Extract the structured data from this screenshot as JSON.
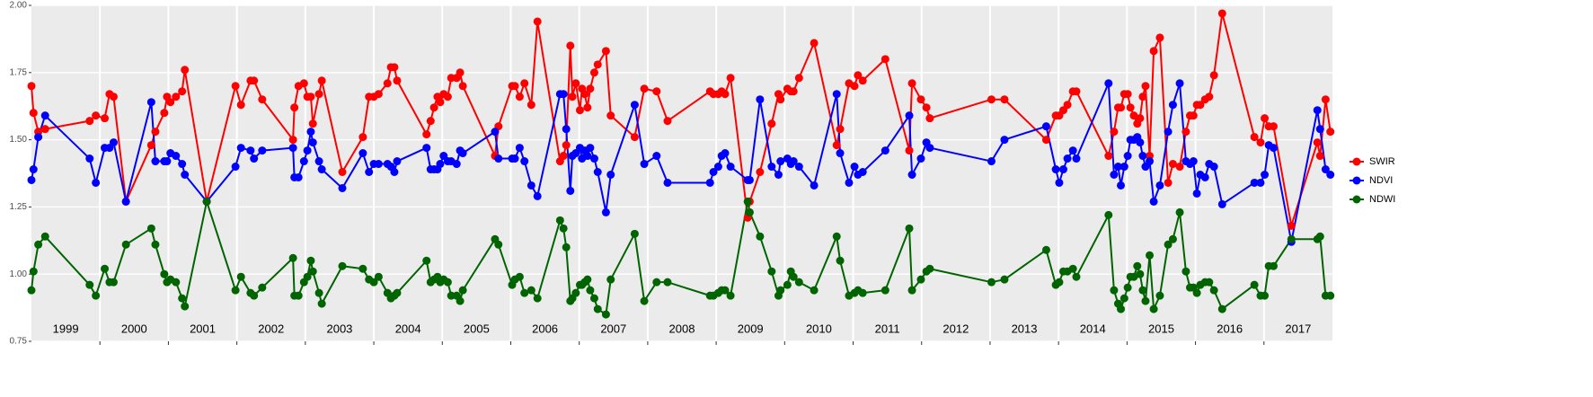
{
  "chart_data": {
    "type": "line",
    "xlim": [
      1999,
      2018
    ],
    "xticks": [
      2000,
      2001,
      2002,
      2003,
      2004,
      2005,
      2006,
      2007,
      2008,
      2009,
      2010,
      2011,
      2012,
      2013,
      2014,
      2015,
      2016,
      2017
    ],
    "year_labels": [
      "1999",
      "2000",
      "2001",
      "2002",
      "2003",
      "2004",
      "2005",
      "2006",
      "2007",
      "2008",
      "2009",
      "2010",
      "2011",
      "2012",
      "2013",
      "2014",
      "2015",
      "2016",
      "2017"
    ],
    "ylim": [
      0.75,
      2.0
    ],
    "yticks": [
      0.75,
      {
        "value": 1,
        "label": "1.00"
      },
      1.25,
      {
        "value": 1.5,
        "label": "1.50"
      },
      1.75,
      {
        "value": 2,
        "label": "2.00"
      }
    ],
    "grid": true,
    "legend": "right",
    "x": [
      1999.0,
      1999.03,
      1999.1,
      1999.2,
      1999.85,
      1999.94,
      2000.07,
      2000.14,
      2000.2,
      2000.38,
      2000.75,
      2000.81,
      2000.94,
      2000.98,
      2001.03,
      2001.11,
      2001.2,
      2001.24,
      2001.56,
      2001.98,
      2002.06,
      2002.2,
      2002.25,
      2002.37,
      2002.82,
      2002.84,
      2002.9,
      2002.98,
      2003.03,
      2003.08,
      2003.11,
      2003.2,
      2003.24,
      2003.54,
      2003.84,
      2003.93,
      2004.0,
      2004.07,
      2004.2,
      2004.25,
      2004.3,
      2004.34,
      2004.77,
      2004.83,
      2004.88,
      2004.93,
      2004.97,
      2005.02,
      2005.08,
      2005.13,
      2005.21,
      2005.26,
      2005.3,
      2005.77,
      2005.82,
      2006.02,
      2006.06,
      2006.13,
      2006.2,
      2006.3,
      2006.39,
      2006.72,
      2006.77,
      2006.81,
      2006.87,
      2006.9,
      2006.95,
      2007.01,
      2007.04,
      2007.08,
      2007.12,
      2007.16,
      2007.22,
      2007.27,
      2007.39,
      2007.46,
      2007.81,
      2007.95,
      2008.13,
      2008.29,
      2008.91,
      2008.96,
      2009.03,
      2009.08,
      2009.13,
      2009.21,
      2009.46,
      2009.49,
      2009.64,
      2009.81,
      2009.91,
      2009.94,
      2010.04,
      2010.09,
      2010.13,
      2010.21,
      2010.43,
      2010.76,
      2010.81,
      2010.94,
      2011.02,
      2011.07,
      2011.14,
      2011.47,
      2011.82,
      2011.86,
      2011.99,
      2012.07,
      2012.12,
      2013.02,
      2013.21,
      2013.82,
      2013.96,
      2014.01,
      2014.07,
      2014.13,
      2014.21,
      2014.26,
      2014.73,
      2014.81,
      2014.87,
      2014.91,
      2014.96,
      2015.01,
      2015.05,
      2015.1,
      2015.15,
      2015.19,
      2015.23,
      2015.27,
      2015.33,
      2015.39,
      2015.48,
      2015.6,
      2015.67,
      2015.77,
      2015.86,
      2015.92,
      2015.97,
      2016.02,
      2016.07,
      2016.14,
      2016.2,
      2016.27,
      2016.39,
      2016.86,
      2016.95,
      2017.01,
      2017.07,
      2017.14,
      2017.4,
      2017.78,
      2017.82,
      2017.9,
      2017.97
    ],
    "series": [
      {
        "name": "SWIR",
        "color": "#ff0000",
        "values": [
          1.7,
          1.6,
          1.53,
          1.54,
          1.57,
          1.59,
          1.58,
          1.67,
          1.66,
          1.27,
          1.48,
          1.53,
          1.6,
          1.66,
          1.64,
          1.66,
          1.68,
          1.76,
          1.27,
          1.7,
          1.63,
          1.72,
          1.72,
          1.65,
          1.5,
          1.62,
          1.7,
          1.71,
          1.66,
          1.66,
          1.56,
          1.67,
          1.72,
          1.38,
          1.51,
          1.66,
          1.66,
          1.67,
          1.71,
          1.77,
          1.77,
          1.72,
          1.52,
          1.57,
          1.62,
          1.66,
          1.64,
          1.67,
          1.66,
          1.73,
          1.73,
          1.75,
          1.7,
          1.44,
          1.55,
          1.7,
          1.7,
          1.66,
          1.71,
          1.63,
          1.94,
          1.42,
          1.44,
          1.48,
          1.85,
          1.66,
          1.71,
          1.61,
          1.69,
          1.67,
          1.62,
          1.69,
          1.75,
          1.78,
          1.83,
          1.59,
          1.51,
          1.69,
          1.68,
          1.57,
          1.68,
          1.67,
          1.67,
          1.68,
          1.67,
          1.73,
          1.21,
          1.27,
          1.38,
          1.56,
          1.67,
          1.65,
          1.69,
          1.68,
          1.68,
          1.73,
          1.86,
          1.48,
          1.54,
          1.71,
          1.7,
          1.74,
          1.72,
          1.8,
          1.46,
          1.71,
          1.65,
          1.62,
          1.58,
          1.65,
          1.65,
          1.5,
          1.59,
          1.59,
          1.61,
          1.63,
          1.68,
          1.68,
          1.44,
          1.53,
          1.62,
          1.62,
          1.67,
          1.67,
          1.62,
          1.59,
          1.56,
          1.58,
          1.66,
          1.7,
          1.44,
          1.83,
          1.88,
          1.34,
          1.41,
          1.4,
          1.53,
          1.59,
          1.59,
          1.63,
          1.63,
          1.65,
          1.66,
          1.74,
          1.97,
          1.51,
          1.49,
          1.58,
          1.55,
          1.55,
          1.18,
          1.49,
          1.44,
          1.65,
          1.53
        ]
      },
      {
        "name": "NDVI",
        "color": "#0000ff",
        "values": [
          1.35,
          1.39,
          1.51,
          1.59,
          1.43,
          1.34,
          1.47,
          1.47,
          1.49,
          1.27,
          1.64,
          1.42,
          1.42,
          1.42,
          1.45,
          1.44,
          1.41,
          1.37,
          1.27,
          1.4,
          1.47,
          1.46,
          1.43,
          1.46,
          1.47,
          1.36,
          1.36,
          1.42,
          1.46,
          1.53,
          1.49,
          1.42,
          1.39,
          1.32,
          1.45,
          1.38,
          1.41,
          1.41,
          1.41,
          1.4,
          1.38,
          1.42,
          1.47,
          1.39,
          1.39,
          1.39,
          1.41,
          1.44,
          1.42,
          1.42,
          1.41,
          1.46,
          1.45,
          1.53,
          1.43,
          1.43,
          1.43,
          1.47,
          1.42,
          1.33,
          1.29,
          1.67,
          1.67,
          1.54,
          1.31,
          1.44,
          1.45,
          1.47,
          1.43,
          1.46,
          1.44,
          1.47,
          1.43,
          1.38,
          1.23,
          1.37,
          1.63,
          1.41,
          1.44,
          1.34,
          1.34,
          1.38,
          1.4,
          1.44,
          1.45,
          1.4,
          1.35,
          1.35,
          1.65,
          1.4,
          1.37,
          1.42,
          1.43,
          1.41,
          1.42,
          1.4,
          1.33,
          1.67,
          1.45,
          1.34,
          1.4,
          1.37,
          1.38,
          1.46,
          1.59,
          1.37,
          1.43,
          1.49,
          1.47,
          1.42,
          1.5,
          1.55,
          1.39,
          1.34,
          1.39,
          1.43,
          1.46,
          1.43,
          1.71,
          1.37,
          1.4,
          1.33,
          1.4,
          1.44,
          1.5,
          1.5,
          1.51,
          1.49,
          1.44,
          1.4,
          1.42,
          1.27,
          1.33,
          1.53,
          1.63,
          1.71,
          1.42,
          1.41,
          1.42,
          1.3,
          1.37,
          1.36,
          1.41,
          1.4,
          1.26,
          1.34,
          1.34,
          1.37,
          1.48,
          1.47,
          1.12,
          1.61,
          1.54,
          1.39,
          1.37
        ]
      },
      {
        "name": "NDWI",
        "color": "#006400",
        "values": [
          0.94,
          1.01,
          1.11,
          1.14,
          0.96,
          0.92,
          1.02,
          0.97,
          0.97,
          1.11,
          1.17,
          1.11,
          1.0,
          0.97,
          0.98,
          0.97,
          0.91,
          0.88,
          1.27,
          0.94,
          0.99,
          0.93,
          0.92,
          0.95,
          1.06,
          0.92,
          0.92,
          0.97,
          0.99,
          1.05,
          1.01,
          0.93,
          0.89,
          1.03,
          1.02,
          0.98,
          0.97,
          0.99,
          0.93,
          0.91,
          0.92,
          0.93,
          1.05,
          0.97,
          0.98,
          0.99,
          0.97,
          0.98,
          0.97,
          0.92,
          0.92,
          0.9,
          0.94,
          1.13,
          1.11,
          0.96,
          0.98,
          0.99,
          0.93,
          0.94,
          0.91,
          1.2,
          1.17,
          1.1,
          0.9,
          0.91,
          0.93,
          0.96,
          0.96,
          0.97,
          0.98,
          0.94,
          0.91,
          0.87,
          0.85,
          0.98,
          1.15,
          0.9,
          0.97,
          0.97,
          0.92,
          0.92,
          0.93,
          0.94,
          0.94,
          0.92,
          1.27,
          1.23,
          1.14,
          1.01,
          0.92,
          0.94,
          0.96,
          1.01,
          0.99,
          0.97,
          0.94,
          1.14,
          1.05,
          0.92,
          0.93,
          0.94,
          0.93,
          0.94,
          1.17,
          0.94,
          0.98,
          1.01,
          1.02,
          0.97,
          0.98,
          1.09,
          0.96,
          0.97,
          1.01,
          1.01,
          1.02,
          0.99,
          1.22,
          0.94,
          0.89,
          0.87,
          0.91,
          0.95,
          0.99,
          0.99,
          1.03,
          1.0,
          0.94,
          0.9,
          1.07,
          0.87,
          0.92,
          1.11,
          1.13,
          1.23,
          1.01,
          0.95,
          0.95,
          0.93,
          0.96,
          0.97,
          0.97,
          0.94,
          0.87,
          0.96,
          0.92,
          0.92,
          1.03,
          1.03,
          1.13,
          1.13,
          1.14,
          0.92,
          0.92
        ]
      }
    ]
  }
}
